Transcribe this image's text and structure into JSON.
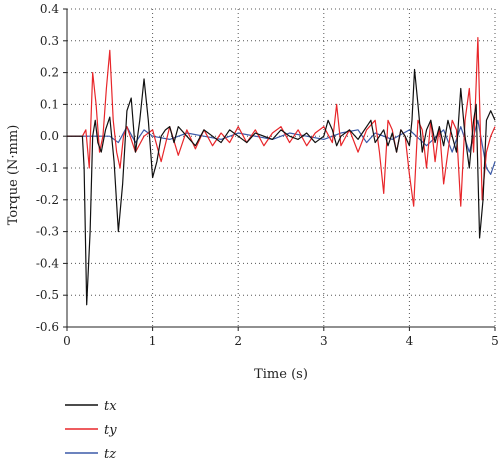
{
  "chart_data": {
    "type": "line",
    "xlabel": "Time (s)",
    "ylabel": "Torque (N·mm)",
    "xlim": [
      0,
      5
    ],
    "ylim": [
      -0.6,
      0.4
    ],
    "xticks": [
      0,
      1,
      2,
      3,
      4,
      5
    ],
    "yticks": [
      0.4,
      0.3,
      0.2,
      0.1,
      0.0,
      -0.1,
      -0.2,
      -0.3,
      -0.4,
      -0.5,
      -0.6
    ],
    "xtick_labels": [
      "0",
      "1",
      "2",
      "3",
      "4",
      "5"
    ],
    "ytick_labels": [
      "0.4",
      "0.3",
      "0.2",
      "0.1",
      "0.0",
      "-0.1",
      "-0.2",
      "-0.3",
      "-0.4",
      "-0.5",
      "-0.6"
    ],
    "grid": "dotted",
    "legend_placement": "bottom-left",
    "series": [
      {
        "name": "tx",
        "color": "#111111",
        "x": [
          0.0,
          0.18,
          0.2,
          0.23,
          0.27,
          0.3,
          0.33,
          0.36,
          0.4,
          0.45,
          0.5,
          0.55,
          0.6,
          0.65,
          0.7,
          0.75,
          0.8,
          0.85,
          0.9,
          0.95,
          1.0,
          1.05,
          1.1,
          1.15,
          1.2,
          1.25,
          1.3,
          1.4,
          1.5,
          1.6,
          1.7,
          1.8,
          1.9,
          2.0,
          2.1,
          2.2,
          2.3,
          2.4,
          2.5,
          2.6,
          2.7,
          2.8,
          2.9,
          3.0,
          3.05,
          3.1,
          3.15,
          3.2,
          3.3,
          3.4,
          3.5,
          3.55,
          3.6,
          3.65,
          3.7,
          3.75,
          3.8,
          3.85,
          3.9,
          3.95,
          4.0,
          4.03,
          4.06,
          4.1,
          4.15,
          4.2,
          4.25,
          4.3,
          4.35,
          4.4,
          4.45,
          4.5,
          4.55,
          4.6,
          4.65,
          4.7,
          4.75,
          4.78,
          4.82,
          4.86,
          4.9,
          4.95,
          5.0
        ],
        "values": [
          0.0,
          0.0,
          -0.1,
          -0.53,
          -0.3,
          0.0,
          0.05,
          -0.02,
          -0.05,
          0.02,
          0.06,
          -0.08,
          -0.3,
          -0.15,
          0.08,
          0.12,
          -0.05,
          0.05,
          0.18,
          0.05,
          -0.13,
          -0.08,
          0.0,
          0.02,
          0.03,
          -0.02,
          0.03,
          0.0,
          -0.03,
          0.02,
          0.0,
          -0.02,
          0.02,
          0.0,
          -0.02,
          0.01,
          0.0,
          -0.01,
          0.02,
          0.0,
          -0.01,
          0.01,
          -0.02,
          0.0,
          0.05,
          0.02,
          -0.03,
          0.0,
          0.02,
          -0.01,
          0.03,
          0.05,
          -0.02,
          0.0,
          0.02,
          -0.03,
          0.01,
          -0.05,
          0.02,
          0.0,
          -0.03,
          0.05,
          0.21,
          0.1,
          -0.05,
          0.02,
          0.05,
          -0.02,
          0.03,
          -0.03,
          0.05,
          0.0,
          -0.05,
          0.15,
          0.0,
          -0.1,
          0.05,
          0.1,
          -0.32,
          -0.2,
          0.05,
          0.08,
          0.05
        ]
      },
      {
        "name": "ty",
        "color": "#e8262a",
        "x": [
          0.0,
          0.18,
          0.22,
          0.26,
          0.3,
          0.34,
          0.38,
          0.42,
          0.46,
          0.5,
          0.54,
          0.58,
          0.62,
          0.66,
          0.7,
          0.8,
          0.9,
          1.0,
          1.1,
          1.2,
          1.3,
          1.4,
          1.5,
          1.6,
          1.7,
          1.8,
          1.9,
          2.0,
          2.1,
          2.2,
          2.3,
          2.4,
          2.5,
          2.6,
          2.7,
          2.8,
          2.9,
          3.0,
          3.1,
          3.15,
          3.2,
          3.3,
          3.4,
          3.5,
          3.6,
          3.65,
          3.7,
          3.75,
          3.8,
          3.85,
          3.9,
          3.95,
          4.0,
          4.05,
          4.1,
          4.15,
          4.2,
          4.25,
          4.3,
          4.35,
          4.4,
          4.45,
          4.5,
          4.55,
          4.6,
          4.65,
          4.7,
          4.75,
          4.8,
          4.85,
          4.9,
          4.95,
          5.0
        ],
        "values": [
          0.0,
          0.0,
          0.02,
          -0.1,
          0.2,
          0.1,
          -0.05,
          0.0,
          0.15,
          0.27,
          0.05,
          -0.05,
          -0.1,
          0.0,
          0.03,
          -0.05,
          0.0,
          0.02,
          -0.08,
          0.03,
          -0.06,
          0.02,
          -0.04,
          0.02,
          -0.03,
          0.01,
          -0.02,
          0.03,
          -0.02,
          0.02,
          -0.03,
          0.01,
          0.03,
          -0.02,
          0.02,
          -0.03,
          0.01,
          0.03,
          -0.02,
          0.1,
          -0.03,
          0.02,
          -0.05,
          0.02,
          0.05,
          -0.05,
          -0.18,
          0.05,
          0.02,
          -0.05,
          0.02,
          0.0,
          -0.12,
          -0.22,
          0.05,
          0.02,
          -0.1,
          0.05,
          -0.08,
          0.03,
          -0.15,
          -0.05,
          0.05,
          0.02,
          -0.22,
          0.05,
          0.15,
          -0.05,
          0.31,
          -0.2,
          -0.05,
          0.0,
          0.03
        ]
      },
      {
        "name": "tz",
        "color": "#3c5aa8",
        "x": [
          0.0,
          0.5,
          0.6,
          0.7,
          0.8,
          0.9,
          1.0,
          1.2,
          1.4,
          1.6,
          1.8,
          2.0,
          2.2,
          2.4,
          2.6,
          2.8,
          3.0,
          3.2,
          3.4,
          3.5,
          3.6,
          3.8,
          4.0,
          4.2,
          4.4,
          4.5,
          4.6,
          4.7,
          4.8,
          4.9,
          4.95,
          5.0
        ],
        "values": [
          0.0,
          0.0,
          -0.02,
          0.03,
          -0.02,
          0.02,
          0.0,
          -0.01,
          0.01,
          0.0,
          -0.01,
          0.01,
          0.0,
          -0.01,
          0.01,
          0.0,
          -0.01,
          0.01,
          0.02,
          -0.02,
          0.01,
          -0.01,
          0.02,
          -0.03,
          0.02,
          -0.05,
          0.03,
          -0.05,
          0.05,
          -0.1,
          -0.12,
          -0.08
        ]
      }
    ]
  }
}
